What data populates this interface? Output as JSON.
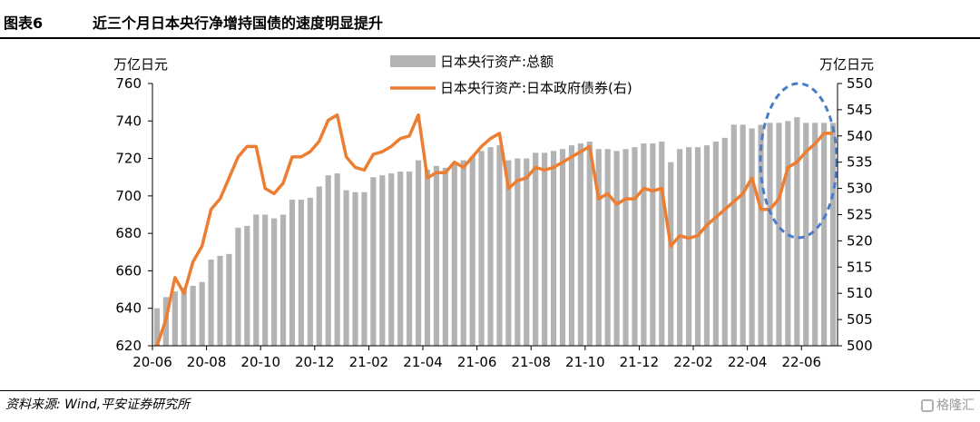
{
  "figure": {
    "label": "图表6",
    "title": "近三个月日本央行净增持国债的速度明显提升"
  },
  "source_note": "资料来源: Wind,平安证券研究所",
  "watermark": "格隆汇",
  "chart_data": {
    "type": "bar+line",
    "title": "近三个月日本央行净增持国债的速度明显提升",
    "left_axis": {
      "unit": "万亿日元",
      "range": [
        620,
        760
      ],
      "ticks": [
        620,
        640,
        660,
        680,
        700,
        720,
        740,
        760
      ]
    },
    "right_axis": {
      "unit": "万亿日元",
      "range": [
        500,
        550
      ],
      "ticks": [
        500,
        505,
        510,
        515,
        520,
        525,
        530,
        535,
        540,
        545,
        550
      ]
    },
    "x_tick_labels": [
      "20-06",
      "20-08",
      "20-10",
      "20-12",
      "21-02",
      "21-04",
      "21-06",
      "21-08",
      "21-10",
      "21-12",
      "22-02",
      "22-04",
      "22-06"
    ],
    "x_tick_every": 6,
    "legend": [
      "日本央行资产:总额",
      "日本央行资产:日本政府债券(右)"
    ],
    "colors": {
      "bar": "#b3b3b3",
      "line": "#ed7d31",
      "ellipse": "#4a7cc9"
    },
    "series": [
      {
        "name": "日本央行资产:总额",
        "axis": "left",
        "kind": "bar",
        "values": [
          640,
          646,
          649,
          651,
          652,
          654,
          666,
          668,
          669,
          683,
          684,
          690,
          690,
          688,
          690,
          698,
          698,
          699,
          705,
          711,
          712,
          703,
          702,
          702,
          710,
          711,
          712,
          713,
          713,
          719,
          714,
          716,
          715,
          717,
          719,
          721,
          724,
          726,
          727,
          719,
          720,
          720,
          723,
          723,
          724,
          725,
          727,
          728,
          729,
          725,
          725,
          724,
          725,
          726,
          728,
          728,
          729,
          718,
          725,
          726,
          726,
          727,
          729,
          731,
          738,
          738,
          736,
          738,
          739,
          739,
          740,
          742,
          739,
          739,
          739,
          739
        ]
      },
      {
        "name": "日本央行资产:日本政府债券(右)",
        "axis": "right",
        "kind": "line",
        "values": [
          500,
          505,
          513,
          510,
          516,
          519,
          526,
          528,
          532,
          536,
          538,
          538,
          530,
          529,
          531,
          536,
          536,
          537,
          539,
          543,
          544,
          536,
          534,
          533.5,
          536.5,
          537,
          538,
          539.5,
          540,
          544,
          532,
          533,
          533,
          535,
          534,
          536,
          538,
          539.5,
          540.5,
          530,
          531.5,
          532,
          534,
          533.5,
          534,
          535,
          536,
          537,
          538,
          528,
          529,
          527,
          528,
          528,
          530,
          529.5,
          530,
          519,
          521,
          520.5,
          521,
          523,
          524.5,
          526,
          527.5,
          529,
          532,
          526,
          526,
          528,
          534,
          535,
          537,
          538.5,
          540.5,
          540.5
        ]
      }
    ],
    "annotation": "dashed ellipse highlighting the last three months"
  }
}
